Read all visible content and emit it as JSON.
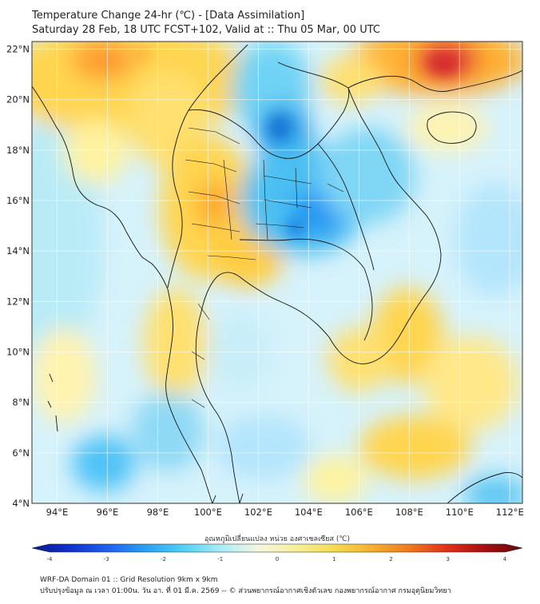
{
  "header": {
    "title": "Temperature Change 24-hr (℃) - [Data Assimilation]",
    "subtitle": "Saturday 28 Feb, 18 UTC FCST+102, Valid at :: Thu 05 Mar, 00 UTC"
  },
  "map": {
    "lat_labels": [
      "22°N",
      "20°N",
      "18°N",
      "16°N",
      "14°N",
      "12°N",
      "10°N",
      "8°N",
      "6°N",
      "4°N"
    ],
    "lon_labels": [
      "94°E",
      "96°E",
      "98°E",
      "100°E",
      "102°E",
      "104°E",
      "106°E",
      "108°E",
      "110°E",
      "112°E"
    ],
    "lat_values": [
      22,
      20,
      18,
      16,
      14,
      12,
      10,
      8,
      6,
      4
    ],
    "lon_values": [
      94,
      96,
      98,
      100,
      102,
      104,
      106,
      108,
      110,
      112
    ],
    "extent": {
      "lon_min": 93,
      "lon_max": 112.5,
      "lat_min": 4,
      "lat_max": 22.3
    },
    "colors": {
      "cold_strong": "#1e88e5",
      "cold": "#4fc3f7",
      "cool": "#b3e5fc",
      "neutral": "#e8f7fb",
      "warm": "#fff59d",
      "warmer": "#ffd54f",
      "hot": "#ff9800",
      "very_hot": "#e53935",
      "border": "#111111"
    }
  },
  "colorbar": {
    "title": "อุณหภูมิเปลี่ยนแปลง หน่วย องศาเซลเซียส (℃)",
    "tick_labels": [
      "-4",
      "-3",
      "-2",
      "-1",
      "0",
      "1",
      "2",
      "3",
      "4"
    ],
    "range": [
      -4,
      4
    ],
    "stops": [
      "#0a1a8c",
      "#1030d0",
      "#1e60f0",
      "#2aa0f5",
      "#4fd0f5",
      "#a8ecf5",
      "#f5f7e0",
      "#f7f09a",
      "#f5dc50",
      "#f5b030",
      "#f07a20",
      "#e03018",
      "#a80e10",
      "#600808"
    ]
  },
  "footer": {
    "line1": "WRF-DA Domain 01 :: Grid Resolution 9km x 9km",
    "line2": "ปรับปรุงข้อมูล ณ เวลา 01:00น. วัน อา. ที่ 01 มี.ค. 2569 -- © ส่วนพยากรณ์อากาศเชิงตัวเลข กองพยากรณ์อากาศ กรมอุตุนิยมวิทยา"
  }
}
